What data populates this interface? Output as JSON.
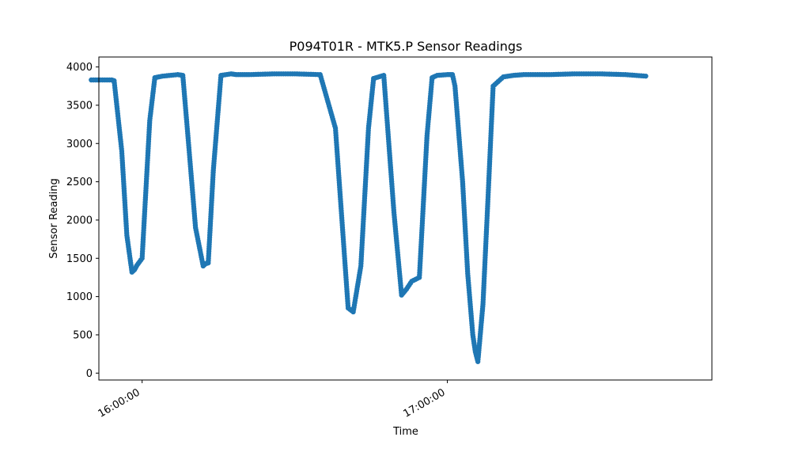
{
  "chart_data": {
    "type": "line",
    "title": "P094T01R - MTK5.P Sensor Readings",
    "xlabel": "Time",
    "ylabel": "Sensor Reading",
    "x_unit": "time of day",
    "xlim": [
      "15:51:30",
      "17:52:00"
    ],
    "ylim": [
      -90,
      4130
    ],
    "grid": false,
    "legend": "none",
    "colors": {
      "series": "#1f77b4"
    },
    "x_ticks": [
      {
        "value": "16:00:00",
        "label": "16:00:00"
      },
      {
        "value": "17:00:00",
        "label": "17:00:00"
      }
    ],
    "y_ticks": [
      {
        "value": 0,
        "label": "0"
      },
      {
        "value": 500,
        "label": "500"
      },
      {
        "value": 1000,
        "label": "1000"
      },
      {
        "value": 1500,
        "label": "1500"
      },
      {
        "value": 2000,
        "label": "2000"
      },
      {
        "value": 2500,
        "label": "2500"
      },
      {
        "value": 3000,
        "label": "3000"
      },
      {
        "value": 3500,
        "label": "3500"
      },
      {
        "value": 4000,
        "label": "4000"
      }
    ],
    "series": [
      {
        "x": [
          "15:50:00",
          "15:54:00",
          "15:54:30",
          "15:56:00",
          "15:57:00",
          "15:58:00",
          "15:58:30",
          "15:59:00",
          "16:00:00",
          "16:01:30",
          "16:02:30",
          "16:04:00",
          "16:07:00",
          "16:08:00",
          "16:09:00",
          "16:10:30",
          "16:12:00",
          "16:12:30",
          "16:13:00",
          "16:14:00",
          "16:15:30",
          "16:17:30",
          "16:18:30",
          "16:21:00",
          "16:26:00",
          "16:30:00",
          "16:35:00",
          "16:38:00",
          "16:40:30",
          "16:41:30",
          "16:43:00",
          "16:44:30",
          "16:45:30",
          "16:47:30",
          "16:49:30",
          "16:51:00",
          "16:52:00",
          "16:53:00",
          "16:54:30",
          "16:56:00",
          "16:57:00",
          "16:58:00",
          "17:00:00",
          "17:01:00",
          "17:01:30",
          "17:03:00",
          "17:04:00",
          "17:05:00",
          "17:05:30",
          "17:06:00",
          "17:07:00",
          "17:08:00",
          "17:09:00",
          "17:11:00",
          "17:13:00",
          "17:15:00",
          "17:20:00",
          "17:25:00",
          "17:30:00",
          "17:35:00",
          "17:39:00"
        ],
        "y": [
          3830,
          3830,
          3820,
          2900,
          1800,
          1320,
          1350,
          1410,
          1500,
          3300,
          3860,
          3880,
          3900,
          3890,
          3100,
          1900,
          1400,
          1430,
          1440,
          2650,
          3890,
          3910,
          3900,
          3900,
          3910,
          3910,
          3900,
          3200,
          850,
          800,
          1400,
          3200,
          3850,
          3890,
          2100,
          1020,
          1100,
          1200,
          1250,
          3100,
          3860,
          3890,
          3900,
          3900,
          3750,
          2500,
          1300,
          500,
          280,
          150,
          900,
          2300,
          3750,
          3870,
          3890,
          3900,
          3900,
          3910,
          3910,
          3900,
          3880
        ]
      }
    ]
  }
}
